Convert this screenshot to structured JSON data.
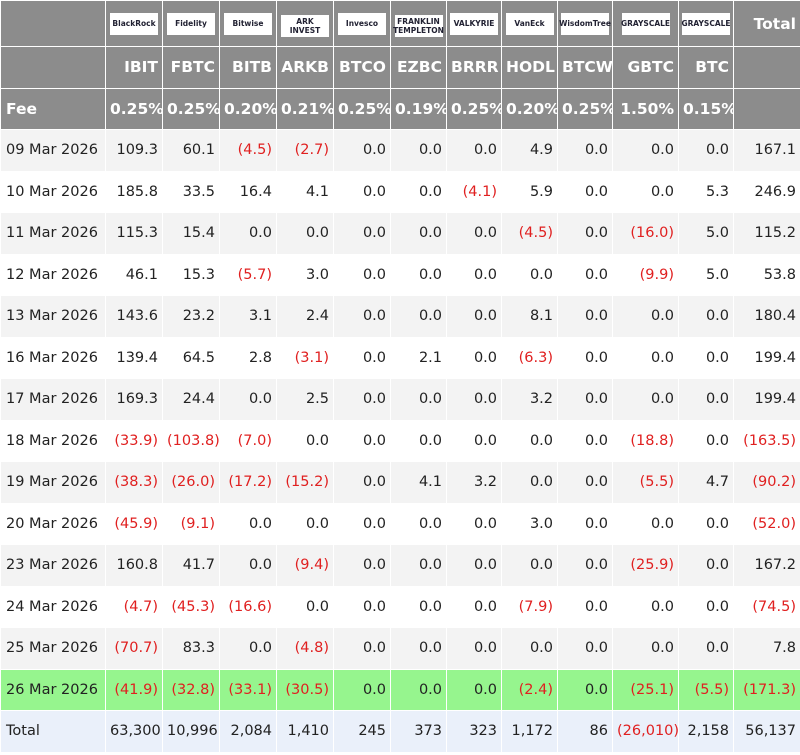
{
  "header": {
    "logos": [
      "BlackRock",
      "Fidelity",
      "Bitwise",
      "ARK INVEST",
      "Invesco",
      "FRANKLIN TEMPLETON",
      "VALKYRIE",
      "VanEck",
      "WisdomTree",
      "GRAYSCALE",
      "GRAYSCALE"
    ],
    "total_label": "Total",
    "tickers": [
      "IBIT",
      "FBTC",
      "BITB",
      "ARKB",
      "BTCO",
      "EZBC",
      "BRRR",
      "HODL",
      "BTCW",
      "GBTC",
      "BTC"
    ],
    "fee_label": "Fee",
    "fees": [
      "0.25%",
      "0.25%",
      "0.20%",
      "0.21%",
      "0.25%",
      "0.19%",
      "0.25%",
      "0.20%",
      "0.25%",
      "1.50%",
      "0.15%"
    ]
  },
  "rows": [
    {
      "date": "09 Mar 2026",
      "cells": [
        "109.3",
        "60.1",
        "(4.5)",
        "(2.7)",
        "0.0",
        "0.0",
        "0.0",
        "4.9",
        "0.0",
        "0.0",
        "0.0",
        "167.1"
      ]
    },
    {
      "date": "10 Mar 2026",
      "cells": [
        "185.8",
        "33.5",
        "16.4",
        "4.1",
        "0.0",
        "0.0",
        "(4.1)",
        "5.9",
        "0.0",
        "0.0",
        "5.3",
        "246.9"
      ]
    },
    {
      "date": "11 Mar 2026",
      "cells": [
        "115.3",
        "15.4",
        "0.0",
        "0.0",
        "0.0",
        "0.0",
        "0.0",
        "(4.5)",
        "0.0",
        "(16.0)",
        "5.0",
        "115.2"
      ]
    },
    {
      "date": "12 Mar 2026",
      "cells": [
        "46.1",
        "15.3",
        "(5.7)",
        "3.0",
        "0.0",
        "0.0",
        "0.0",
        "0.0",
        "0.0",
        "(9.9)",
        "5.0",
        "53.8"
      ]
    },
    {
      "date": "13 Mar 2026",
      "cells": [
        "143.6",
        "23.2",
        "3.1",
        "2.4",
        "0.0",
        "0.0",
        "0.0",
        "8.1",
        "0.0",
        "0.0",
        "0.0",
        "180.4"
      ]
    },
    {
      "date": "16 Mar 2026",
      "cells": [
        "139.4",
        "64.5",
        "2.8",
        "(3.1)",
        "0.0",
        "2.1",
        "0.0",
        "(6.3)",
        "0.0",
        "0.0",
        "0.0",
        "199.4"
      ]
    },
    {
      "date": "17 Mar 2026",
      "cells": [
        "169.3",
        "24.4",
        "0.0",
        "2.5",
        "0.0",
        "0.0",
        "0.0",
        "3.2",
        "0.0",
        "0.0",
        "0.0",
        "199.4"
      ]
    },
    {
      "date": "18 Mar 2026",
      "cells": [
        "(33.9)",
        "(103.8)",
        "(7.0)",
        "0.0",
        "0.0",
        "0.0",
        "0.0",
        "0.0",
        "0.0",
        "(18.8)",
        "0.0",
        "(163.5)"
      ]
    },
    {
      "date": "19 Mar 2026",
      "cells": [
        "(38.3)",
        "(26.0)",
        "(17.2)",
        "(15.2)",
        "0.0",
        "4.1",
        "3.2",
        "0.0",
        "0.0",
        "(5.5)",
        "4.7",
        "(90.2)"
      ]
    },
    {
      "date": "20 Mar 2026",
      "cells": [
        "(45.9)",
        "(9.1)",
        "0.0",
        "0.0",
        "0.0",
        "0.0",
        "0.0",
        "3.0",
        "0.0",
        "0.0",
        "0.0",
        "(52.0)"
      ]
    },
    {
      "date": "23 Mar 2026",
      "cells": [
        "160.8",
        "41.7",
        "0.0",
        "(9.4)",
        "0.0",
        "0.0",
        "0.0",
        "0.0",
        "0.0",
        "(25.9)",
        "0.0",
        "167.2"
      ]
    },
    {
      "date": "24 Mar 2026",
      "cells": [
        "(4.7)",
        "(45.3)",
        "(16.6)",
        "0.0",
        "0.0",
        "0.0",
        "0.0",
        "(7.9)",
        "0.0",
        "0.0",
        "0.0",
        "(74.5)"
      ]
    },
    {
      "date": "25 Mar 2026",
      "cells": [
        "(70.7)",
        "83.3",
        "0.0",
        "(4.8)",
        "0.0",
        "0.0",
        "0.0",
        "0.0",
        "0.0",
        "0.0",
        "0.0",
        "7.8"
      ]
    },
    {
      "date": "26 Mar 2026",
      "cells": [
        "(41.9)",
        "(32.8)",
        "(33.1)",
        "(30.5)",
        "0.0",
        "0.0",
        "0.0",
        "(2.4)",
        "0.0",
        "(25.1)",
        "(5.5)",
        "(171.3)"
      ]
    }
  ],
  "totals": {
    "label": "Total",
    "cells": [
      "63,300",
      "10,996",
      "2,084",
      "1,410",
      "245",
      "373",
      "323",
      "1,172",
      "86",
      "(26,010)",
      "2,158",
      "56,137"
    ]
  }
}
